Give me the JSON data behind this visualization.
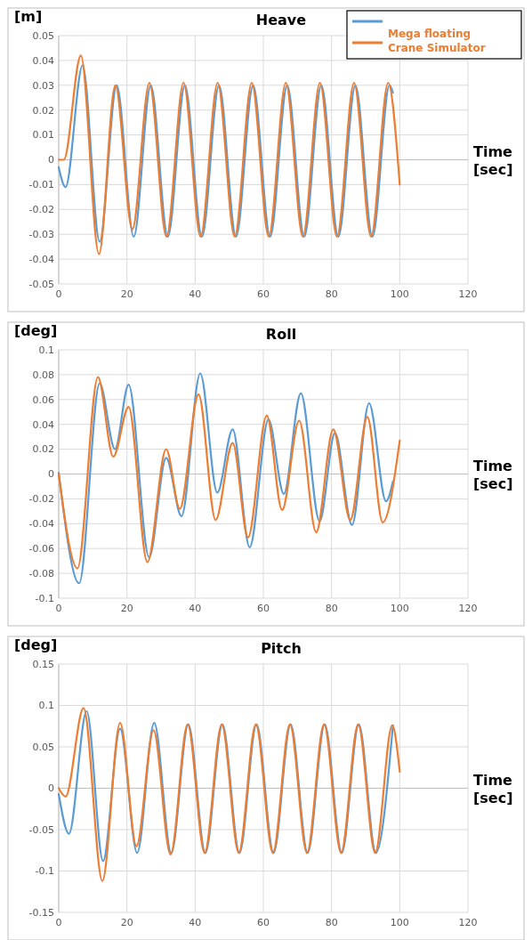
{
  "chart_data": [
    {
      "type": "line",
      "title": "Heave",
      "ylabel": "[m]",
      "xlabel": "Time [sec]",
      "xlim": [
        0,
        120
      ],
      "xticks": [
        0,
        20,
        40,
        60,
        80,
        100,
        120
      ],
      "ylim": [
        -0.05,
        0.05
      ],
      "yticks": [
        -0.05,
        -0.04,
        -0.03,
        -0.02,
        -0.01,
        0,
        0.01,
        0.02,
        0.03,
        0.04,
        0.05
      ],
      "grid": true,
      "legend": "top right",
      "series": [
        {
          "color": "#5b9bd5",
          "x": [
            0,
            2,
            7,
            12,
            17,
            22,
            27,
            32,
            37,
            42,
            47,
            52,
            57,
            62,
            67,
            72,
            77,
            82,
            87,
            92,
            97,
            98
          ],
          "values": [
            -0.003,
            -0.011,
            0.038,
            -0.033,
            0.03,
            -0.031,
            0.03,
            -0.031,
            0.03,
            -0.031,
            0.03,
            -0.031,
            0.03,
            -0.031,
            0.03,
            -0.031,
            0.03,
            -0.031,
            0.03,
            -0.031,
            0.03,
            0.027
          ]
        },
        {
          "name": "Mega floating Crane Simulator",
          "color": "#ed7d31",
          "x": [
            0,
            1.5,
            6.5,
            11.8,
            16.6,
            21.6,
            26.6,
            31.6,
            36.6,
            41.6,
            46.6,
            51.6,
            56.6,
            61.6,
            66.6,
            71.6,
            76.6,
            81.6,
            86.6,
            91.6,
            96.6,
            100
          ],
          "values": [
            0,
            0,
            0.042,
            -0.038,
            0.03,
            -0.028,
            0.031,
            -0.031,
            0.031,
            -0.031,
            0.031,
            -0.031,
            0.031,
            -0.031,
            0.031,
            -0.031,
            0.031,
            -0.031,
            0.031,
            -0.031,
            0.031,
            -0.01
          ]
        }
      ]
    },
    {
      "type": "line",
      "title": "Roll",
      "ylabel": "[deg]",
      "xlabel": "Time [sec]",
      "xlim": [
        0,
        120
      ],
      "xticks": [
        0,
        20,
        40,
        60,
        80,
        100,
        120
      ],
      "ylim": [
        -0.1,
        0.1
      ],
      "yticks": [
        -0.1,
        -0.08,
        -0.06,
        -0.04,
        -0.02,
        0,
        0.02,
        0.04,
        0.06,
        0.08,
        0.1
      ],
      "grid": true,
      "series": [
        {
          "color": "#5b9bd5",
          "x": [
            0,
            6,
            12,
            16.5,
            20.5,
            26.5,
            31.5,
            36,
            41.5,
            46.5,
            51,
            56,
            61.5,
            66,
            71,
            76.5,
            81,
            86,
            91,
            96,
            98
          ],
          "values": [
            0.001,
            -0.088,
            0.073,
            0.02,
            0.072,
            -0.067,
            0.013,
            -0.034,
            0.081,
            -0.015,
            0.036,
            -0.059,
            0.044,
            -0.016,
            0.065,
            -0.038,
            0.033,
            -0.041,
            0.057,
            -0.022,
            -0.006
          ]
        },
        {
          "color": "#ed7d31",
          "x": [
            0,
            5.5,
            11.5,
            16,
            20.5,
            26,
            31.5,
            35.5,
            41,
            46,
            51,
            55.5,
            61,
            65.5,
            70.5,
            75.5,
            80.5,
            85.5,
            90.5,
            95,
            100
          ],
          "values": [
            0,
            -0.076,
            0.078,
            0.014,
            0.054,
            -0.071,
            0.02,
            -0.028,
            0.064,
            -0.037,
            0.025,
            -0.051,
            0.047,
            -0.029,
            0.043,
            -0.047,
            0.036,
            -0.037,
            0.046,
            -0.039,
            0.027
          ]
        }
      ]
    },
    {
      "type": "line",
      "title": "Pitch",
      "ylabel": "[deg]",
      "xlabel": "Time [sec]",
      "xlim": [
        0,
        120
      ],
      "xticks": [
        0,
        20,
        40,
        60,
        80,
        100,
        120
      ],
      "ylim": [
        -0.15,
        0.15
      ],
      "yticks": [
        -0.15,
        -0.1,
        -0.05,
        0,
        0.05,
        0.1,
        0.15
      ],
      "grid": true,
      "series": [
        {
          "color": "#5b9bd5",
          "x": [
            0,
            3,
            8.2,
            13,
            18,
            23,
            28,
            33,
            38,
            43,
            48,
            53,
            58,
            63,
            68,
            73,
            78,
            83,
            88,
            93,
            98
          ],
          "values": [
            -0.007,
            -0.055,
            0.093,
            -0.088,
            0.072,
            -0.078,
            0.079,
            -0.078,
            0.077,
            -0.078,
            0.077,
            -0.078,
            0.077,
            -0.078,
            0.077,
            -0.078,
            0.077,
            -0.078,
            0.077,
            -0.078,
            0.076
          ]
        },
        {
          "color": "#ed7d31",
          "x": [
            0,
            2,
            7.3,
            12.8,
            18,
            22.8,
            27.8,
            32.8,
            37.8,
            42.8,
            47.8,
            52.8,
            57.8,
            62.8,
            67.8,
            72.8,
            77.8,
            82.8,
            87.8,
            92.8,
            97.8,
            100
          ],
          "values": [
            0,
            -0.01,
            0.097,
            -0.112,
            0.079,
            -0.07,
            0.07,
            -0.08,
            0.077,
            -0.078,
            0.077,
            -0.078,
            0.077,
            -0.078,
            0.077,
            -0.078,
            0.077,
            -0.078,
            0.077,
            -0.078,
            0.076,
            0.02
          ]
        }
      ]
    }
  ]
}
